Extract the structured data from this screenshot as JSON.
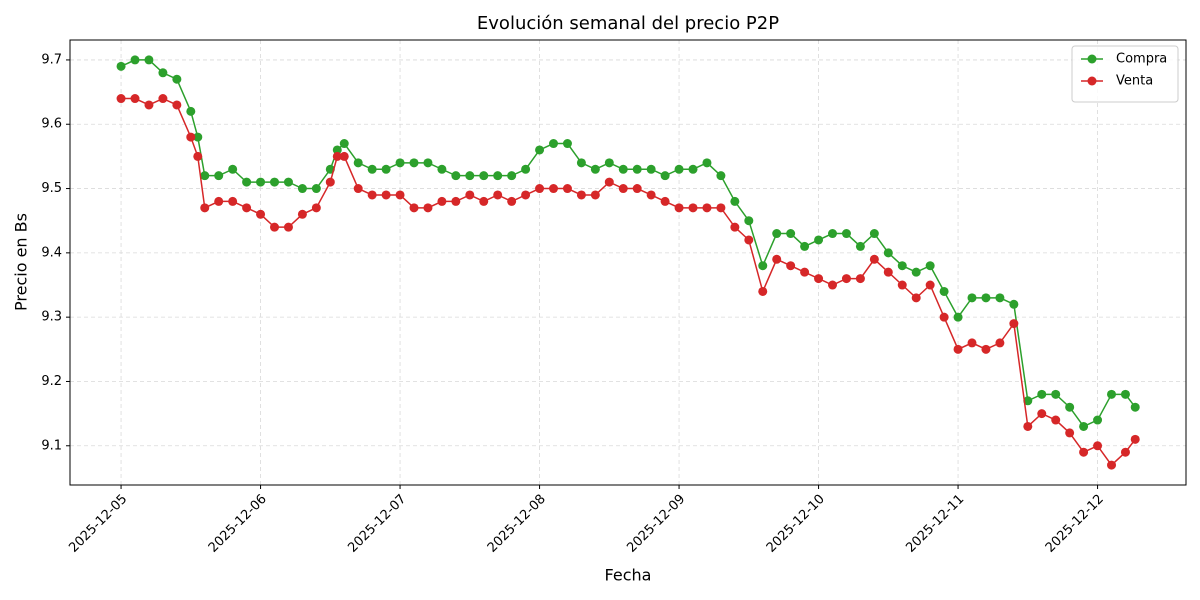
{
  "chart_data": {
    "type": "line",
    "title": "Evolución semanal del precio P2P",
    "x_label": "Fecha",
    "y_label": "Precio en Bs",
    "x": [
      0,
      0.1,
      0.2,
      0.3,
      0.4,
      0.5,
      0.55,
      0.6,
      0.7,
      0.8,
      0.9,
      1.0,
      1.1,
      1.2,
      1.3,
      1.4,
      1.5,
      1.55,
      1.6,
      1.7,
      1.8,
      1.9,
      2.0,
      2.1,
      2.2,
      2.3,
      2.4,
      2.5,
      2.6,
      2.7,
      2.8,
      2.9,
      3.0,
      3.1,
      3.2,
      3.3,
      3.4,
      3.5,
      3.6,
      3.7,
      3.8,
      3.9,
      4.0,
      4.1,
      4.2,
      4.3,
      4.4,
      4.5,
      4.6,
      4.7,
      4.8,
      4.9,
      5.0,
      5.1,
      5.2,
      5.3,
      5.4,
      5.5,
      5.6,
      5.7,
      5.8,
      5.9,
      6.0,
      6.1,
      6.2,
      6.3,
      6.4,
      6.5,
      6.6,
      6.7,
      6.8,
      6.9,
      7.0,
      7.1,
      7.2,
      7.27
    ],
    "series": [
      {
        "name": "Compra",
        "color": "#2ca02c",
        "values": [
          9.69,
          9.7,
          9.7,
          9.68,
          9.67,
          9.62,
          9.58,
          9.52,
          9.52,
          9.53,
          9.51,
          9.51,
          9.51,
          9.51,
          9.5,
          9.5,
          9.53,
          9.56,
          9.57,
          9.54,
          9.53,
          9.53,
          9.54,
          9.54,
          9.54,
          9.53,
          9.52,
          9.52,
          9.52,
          9.52,
          9.52,
          9.53,
          9.56,
          9.57,
          9.57,
          9.54,
          9.53,
          9.54,
          9.53,
          9.53,
          9.53,
          9.52,
          9.53,
          9.53,
          9.54,
          9.52,
          9.48,
          9.45,
          9.38,
          9.43,
          9.43,
          9.41,
          9.42,
          9.43,
          9.43,
          9.41,
          9.43,
          9.4,
          9.38,
          9.37,
          9.38,
          9.34,
          9.3,
          9.33,
          9.33,
          9.33,
          9.32,
          9.17,
          9.18,
          9.18,
          9.16,
          9.13,
          9.14,
          9.18,
          9.18,
          9.16
        ]
      },
      {
        "name": "Venta",
        "color": "#d62728",
        "values": [
          9.64,
          9.64,
          9.63,
          9.64,
          9.63,
          9.58,
          9.55,
          9.47,
          9.48,
          9.48,
          9.47,
          9.46,
          9.44,
          9.44,
          9.46,
          9.47,
          9.51,
          9.55,
          9.55,
          9.5,
          9.49,
          9.49,
          9.49,
          9.47,
          9.47,
          9.48,
          9.48,
          9.49,
          9.48,
          9.49,
          9.48,
          9.49,
          9.5,
          9.5,
          9.5,
          9.49,
          9.49,
          9.51,
          9.5,
          9.5,
          9.49,
          9.48,
          9.47,
          9.47,
          9.47,
          9.47,
          9.44,
          9.42,
          9.34,
          9.39,
          9.38,
          9.37,
          9.36,
          9.35,
          9.36,
          9.36,
          9.39,
          9.37,
          9.35,
          9.33,
          9.35,
          9.3,
          9.25,
          9.26,
          9.25,
          9.26,
          9.29,
          9.13,
          9.15,
          9.14,
          9.12,
          9.09,
          9.1,
          9.07,
          9.09,
          9.11
        ]
      }
    ],
    "xlim": [
      -0.366,
      7.634
    ],
    "xticks": [
      {
        "value": 0,
        "label": "2025-12-05"
      },
      {
        "value": 1,
        "label": "2025-12-06"
      },
      {
        "value": 2,
        "label": "2025-12-07"
      },
      {
        "value": 3,
        "label": "2025-12-08"
      },
      {
        "value": 4,
        "label": "2025-12-09"
      },
      {
        "value": 5,
        "label": "2025-12-10"
      },
      {
        "value": 6,
        "label": "2025-12-11"
      },
      {
        "value": 7,
        "label": "2025-12-12"
      }
    ],
    "ylim": [
      9.039,
      9.731
    ],
    "yticks": [
      9.1,
      9.2,
      9.3,
      9.4,
      9.5,
      9.6,
      9.7
    ],
    "grid": true,
    "legend": "upper right"
  }
}
